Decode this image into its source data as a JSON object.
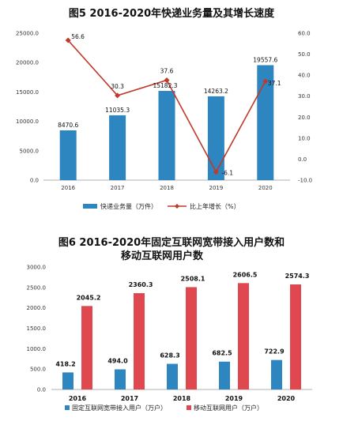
{
  "chart_data": [
    {
      "type": "bar",
      "title": "图5   2016-2020年快递业务量及其增长速度",
      "categories": [
        "2016",
        "2017",
        "2018",
        "2019",
        "2020"
      ],
      "series": [
        {
          "name": "快递业务量（万件）",
          "type": "bar",
          "axis": "left",
          "values": [
            8470.6,
            11035.3,
            15182.3,
            14263.2,
            19557.6
          ],
          "labels": [
            "8470.6",
            "11035.3",
            "15182.3",
            "14263.2",
            "19557.6"
          ]
        },
        {
          "name": "比上年增长（%）",
          "type": "line",
          "axis": "right",
          "values": [
            56.6,
            30.3,
            37.6,
            -6.1,
            37.1
          ],
          "labels": [
            "56.6",
            "30.3",
            "37.6",
            "-6.1",
            "37.1"
          ]
        }
      ],
      "ylim": [
        0,
        25000
      ],
      "yticks": [
        "0.0",
        "5000.0",
        "10000.0",
        "15000.0",
        "20000.0",
        "25000.0"
      ],
      "y2lim": [
        -10,
        60
      ],
      "y2ticks": [
        "-10.0",
        "0.0",
        "10.0",
        "20.0",
        "30.0",
        "40.0",
        "50.0",
        "60.0"
      ],
      "grid": false,
      "legend": "bottom",
      "colors": {
        "bar": "#2e86c1",
        "line": "#c0392b"
      }
    },
    {
      "type": "bar",
      "title": "图6   2016-2020年固定互联网宽带接入用户数和",
      "subtitle": "移动互联网用户数",
      "categories": [
        "2016",
        "2017",
        "2018",
        "2019",
        "2020"
      ],
      "series": [
        {
          "name": "固定互联网宽带接入用户（万户）",
          "values": [
            418.2,
            494.0,
            628.3,
            682.5,
            722.9
          ],
          "labels": [
            "418.2",
            "494.0",
            "628.3",
            "682.5",
            "722.9"
          ]
        },
        {
          "name": "移动互联网用户（万户）",
          "values": [
            2045.2,
            2360.3,
            2508.1,
            2606.5,
            2574.3
          ],
          "labels": [
            "2045.2",
            "2360.3",
            "2508.1",
            "2606.5",
            "2574.3"
          ]
        }
      ],
      "ylim": [
        0,
        3000
      ],
      "yticks": [
        "0.0",
        "500.0",
        "1000.0",
        "1500.0",
        "2000.0",
        "2500.0",
        "3000.0"
      ],
      "grid": false,
      "legend": "bottom",
      "colors": {
        "series1": "#2e86c1",
        "series2": "#e0484f"
      }
    }
  ]
}
